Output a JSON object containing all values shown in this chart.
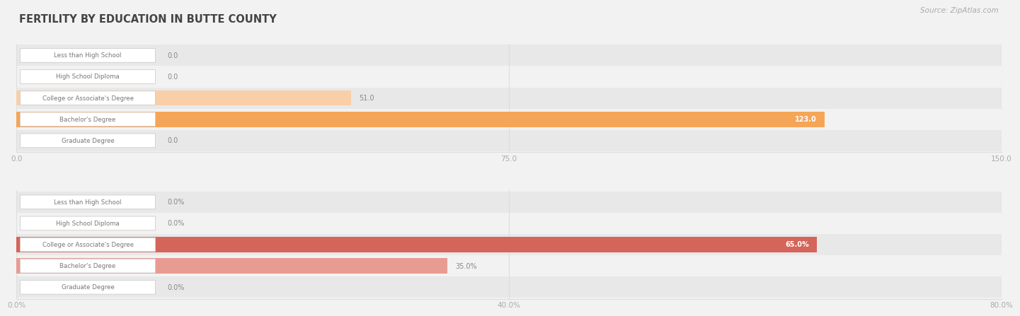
{
  "title": "FERTILITY BY EDUCATION IN BUTTE COUNTY",
  "source": "Source: ZipAtlas.com",
  "top_chart": {
    "categories": [
      "Less than High School",
      "High School Diploma",
      "College or Associate's Degree",
      "Bachelor's Degree",
      "Graduate Degree"
    ],
    "values": [
      0.0,
      0.0,
      51.0,
      123.0,
      0.0
    ],
    "xlim": [
      0,
      150.0
    ],
    "xticks": [
      0.0,
      75.0,
      150.0
    ],
    "xtick_labels": [
      "0.0",
      "75.0",
      "150.0"
    ],
    "bar_color_light": "#f9cfa8",
    "bar_color_dark": "#f5a558",
    "value_threshold": 100
  },
  "bottom_chart": {
    "categories": [
      "Less than High School",
      "High School Diploma",
      "College or Associate's Degree",
      "Bachelor's Degree",
      "Graduate Degree"
    ],
    "values": [
      0.0,
      0.0,
      65.0,
      35.0,
      0.0
    ],
    "xlim": [
      0,
      80.0
    ],
    "xticks": [
      0.0,
      40.0,
      80.0
    ],
    "xtick_labels": [
      "0.0%",
      "40.0%",
      "80.0%"
    ],
    "bar_color_light": "#e89b92",
    "bar_color_dark": "#d4655a",
    "value_threshold": 55
  },
  "bg_color": "#f2f2f2",
  "row_bg_light": "#f2f2f2",
  "row_bg_dark": "#e8e8e8",
  "label_box_color": "#ffffff",
  "label_box_border": "#cccccc",
  "grid_color": "#dddddd",
  "title_color": "#444444",
  "axis_tick_color": "#aaaaaa",
  "label_text_color": "#777777"
}
